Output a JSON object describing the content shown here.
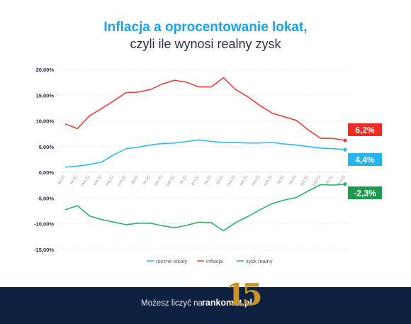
{
  "header": {
    "title": "Inflacja a oprocentowanie lokat,",
    "subtitle": "czyli ile wynosi realny zysk"
  },
  "chart_data": {
    "type": "line",
    "title": "Inflacja a oprocentowanie lokat,",
    "subtitle": "czyli ile wynosi realny zysk",
    "xlabel": "",
    "ylabel": "",
    "x": [
      "sty.22",
      "lut.22",
      "mar.22",
      "kwi.22",
      "maj.22",
      "cze.22",
      "lip.22",
      "sie.22",
      "wrz.22",
      "paź.22",
      "lis.22",
      "gru.22",
      "sty.23",
      "lut.23",
      "mar.23",
      "kwi.23",
      "maj.23",
      "cze.23",
      "lip.23",
      "sie.23",
      "wrz.23",
      "paź.23",
      "lis.23",
      "gru.23"
    ],
    "yticks": [
      "20,00%",
      "15,00%",
      "10,00%",
      "5,00%",
      "0,00%",
      "-5,00%",
      "-10,00%",
      "-15,00%"
    ],
    "ylim": [
      -15,
      20
    ],
    "grid": true,
    "legend_position": "bottom",
    "series": [
      {
        "name": "roczne lokaty",
        "color": "#2bbde8",
        "values": [
          1.0,
          1.2,
          1.5,
          2.0,
          3.4,
          4.6,
          4.9,
          5.3,
          5.6,
          5.7,
          6.0,
          6.3,
          6.0,
          5.8,
          5.8,
          5.7,
          5.7,
          5.8,
          5.5,
          5.3,
          5.0,
          4.7,
          4.6,
          4.4
        ]
      },
      {
        "name": "inflacja",
        "color": "#e8413c",
        "values": [
          9.4,
          8.5,
          11.0,
          12.4,
          13.9,
          15.5,
          15.6,
          16.1,
          17.2,
          17.9,
          17.5,
          16.6,
          16.6,
          18.4,
          16.1,
          14.7,
          13.0,
          11.5,
          10.8,
          10.1,
          8.2,
          6.6,
          6.6,
          6.2
        ]
      },
      {
        "name": "zysk realny",
        "color": "#2db36a",
        "values": [
          -7.3,
          -6.5,
          -8.5,
          -9.2,
          -9.7,
          -10.2,
          -9.9,
          -9.9,
          -10.4,
          -10.8,
          -10.3,
          -9.7,
          -9.8,
          -11.4,
          -9.8,
          -8.6,
          -7.3,
          -6.1,
          -5.4,
          -4.9,
          -3.6,
          -2.4,
          -2.5,
          -2.3
        ]
      }
    ],
    "end_labels": [
      {
        "series": "inflacja",
        "text": "6,2%",
        "color": "#ee2b24"
      },
      {
        "series": "roczne lokaty",
        "text": "4,4%",
        "color": "#27b4ea"
      },
      {
        "series": "zysk realny",
        "text": "-2,3%",
        "color": "#1e9a4f"
      }
    ]
  },
  "footer": {
    "text": "Możesz liczyć na",
    "brand": "rankomat.pl",
    "badge": "15"
  }
}
